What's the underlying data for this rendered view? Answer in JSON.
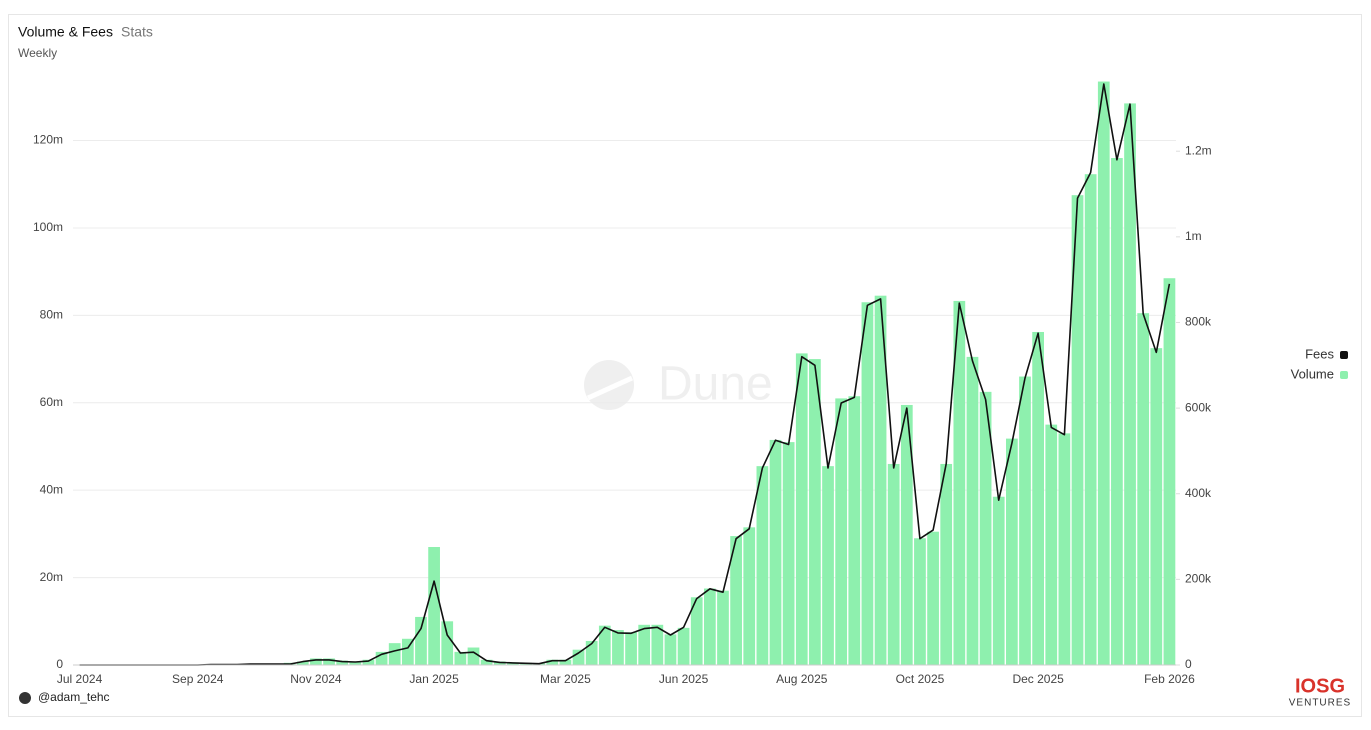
{
  "chart_data": {
    "type": "combo",
    "title": "Volume & Fees",
    "tab": "Stats",
    "subtitle": "Weekly",
    "watermark": "Dune",
    "categories": [
      "Jul 2024",
      null,
      null,
      null,
      null,
      null,
      null,
      null,
      null,
      "Sep 2024",
      null,
      null,
      null,
      null,
      null,
      null,
      null,
      null,
      "Nov 2024",
      null,
      null,
      null,
      null,
      null,
      null,
      null,
      null,
      "Jan 2025",
      null,
      null,
      null,
      null,
      null,
      null,
      null,
      null,
      null,
      "Mar 2025",
      null,
      null,
      null,
      null,
      null,
      null,
      null,
      null,
      "Jun 2025",
      null,
      null,
      null,
      null,
      null,
      null,
      null,
      null,
      "Aug 2025",
      null,
      null,
      null,
      null,
      null,
      null,
      null,
      null,
      "Oct 2025",
      null,
      null,
      null,
      null,
      null,
      null,
      null,
      null,
      "Dec 2025",
      null,
      null,
      null,
      null,
      null,
      null,
      null,
      null,
      null,
      "Feb 2026"
    ],
    "series": [
      {
        "name": "Fees",
        "type": "line",
        "axis": "y2",
        "color": "#111111",
        "values": [
          0,
          0,
          0,
          0,
          0,
          0,
          0,
          0,
          0,
          0,
          1000,
          1000,
          1000,
          2000,
          2000,
          2000,
          2000,
          8000,
          12000,
          12000,
          8000,
          7000,
          9000,
          25000,
          33000,
          40000,
          85000,
          196000,
          70000,
          28000,
          30000,
          10000,
          6000,
          5000,
          4000,
          3000,
          10000,
          10000,
          28000,
          50000,
          88000,
          75000,
          74000,
          85000,
          88000,
          70000,
          88000,
          155000,
          178000,
          170000,
          295000,
          318000,
          460000,
          525000,
          515000,
          720000,
          700000,
          460000,
          612000,
          625000,
          840000,
          855000,
          460000,
          600000,
          295000,
          315000,
          470000,
          845000,
          710000,
          620000,
          385000,
          518000,
          670000,
          775000,
          555000,
          538000,
          1090000,
          1150000,
          1357000,
          1180000,
          1310000,
          820000,
          730000,
          890000
        ]
      },
      {
        "name": "Volume",
        "type": "bar",
        "color": "#8ef0ae",
        "values": [
          100000,
          100000,
          100000,
          100000,
          100000,
          100000,
          100000,
          100000,
          100000,
          100000,
          200000,
          200000,
          200000,
          300000,
          300000,
          300000,
          500000,
          800000,
          1500000,
          1500000,
          1000000,
          800000,
          1200000,
          3000000,
          5000000,
          6000000,
          11000000,
          27000000,
          10000000,
          3000000,
          4000000,
          1200000,
          800000,
          600000,
          500000,
          400000,
          1200000,
          1200000,
          3500000,
          5500000,
          9000000,
          8000000,
          7500000,
          9200000,
          9200000,
          7000000,
          8500000,
          15500000,
          17500000,
          17000000,
          29500000,
          31500000,
          45500000,
          51500000,
          51000000,
          71300000,
          70000000,
          45500000,
          61000000,
          61500000,
          83000000,
          84500000,
          46000000,
          59500000,
          29000000,
          30500000,
          46000000,
          83300000,
          70500000,
          62500000,
          38500000,
          51800000,
          66000000,
          76200000,
          55000000,
          53000000,
          107500000,
          112300000,
          133500000,
          116000000,
          128500000,
          80500000,
          72500000,
          88500000
        ]
      }
    ],
    "ylim": [
      0,
      135000000
    ],
    "yticks": [
      0,
      {
        "value": 20000000,
        "label": "20m"
      },
      {
        "value": 40000000,
        "label": "40m"
      },
      {
        "value": 60000000,
        "label": "60m"
      },
      {
        "value": 80000000,
        "label": "80m"
      },
      {
        "value": 100000000,
        "label": "100m"
      },
      {
        "value": 120000000,
        "label": "120m"
      }
    ],
    "y2lim": [
      0,
      1378000
    ],
    "y2ticks": [
      0,
      {
        "value": 200000,
        "label": "200k"
      },
      {
        "value": 400000,
        "label": "400k"
      },
      {
        "value": 600000,
        "label": "600k"
      },
      {
        "value": 800000,
        "label": "800k"
      },
      {
        "value": 1000000,
        "label": "1m"
      },
      {
        "value": 1200000,
        "label": "1.2m"
      }
    ],
    "grid": true,
    "legend": "right"
  },
  "footer": {
    "author": "@adam_tehc",
    "logo": "IOSG",
    "logo_sub": "VENTURES"
  }
}
